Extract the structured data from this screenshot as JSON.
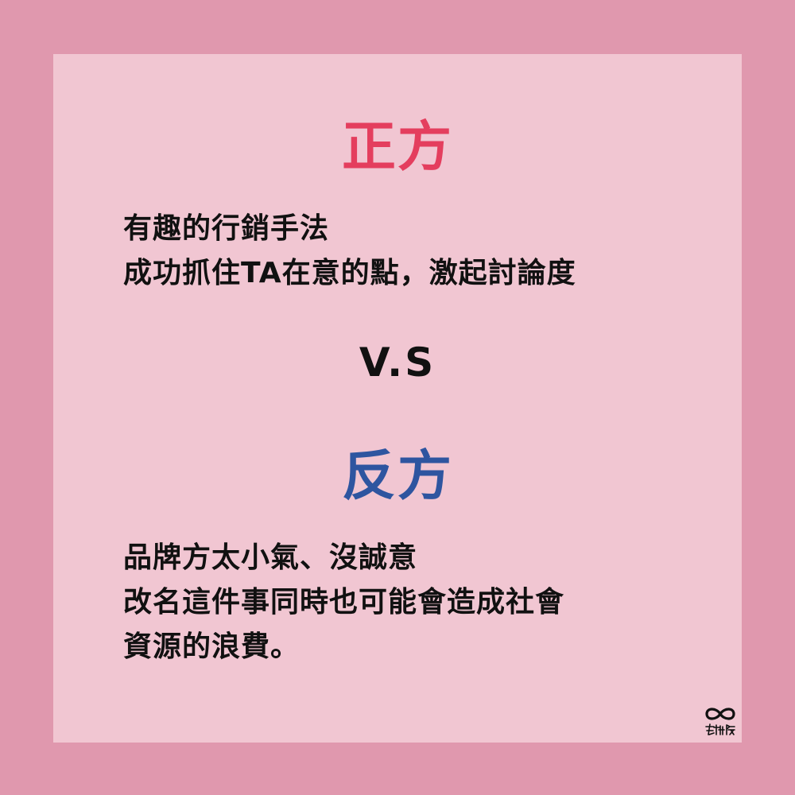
{
  "colors": {
    "background": "#e098ae",
    "card": "#f1c6d2",
    "pro_accent": "#e43e5e",
    "con_accent": "#2e55a0",
    "text": "#111111"
  },
  "pro": {
    "heading": "正方",
    "lines": [
      "有趣的行銷手法",
      "成功抓住TA在意的點，激起討論度"
    ]
  },
  "vs": "V.S",
  "con": {
    "heading": "反方",
    "lines": [
      "品牌方太小氣、沒誠意",
      "改名這件事同時也可能會造成社會",
      "資源的浪費。"
    ]
  },
  "logo": {
    "icon": "infinity-icon",
    "text": "無極限"
  }
}
